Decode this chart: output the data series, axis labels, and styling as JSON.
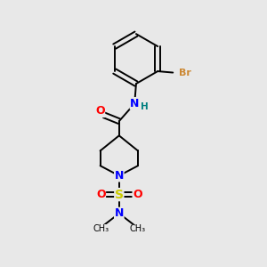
{
  "background_color": "#e8e8e8",
  "bond_color": "#000000",
  "atom_colors": {
    "N": "#0000ff",
    "O": "#ff0000",
    "S": "#cccc00",
    "Br": "#cc8833",
    "H": "#008080",
    "C": "#000000"
  },
  "figsize": [
    3.0,
    3.0
  ],
  "dpi": 100
}
